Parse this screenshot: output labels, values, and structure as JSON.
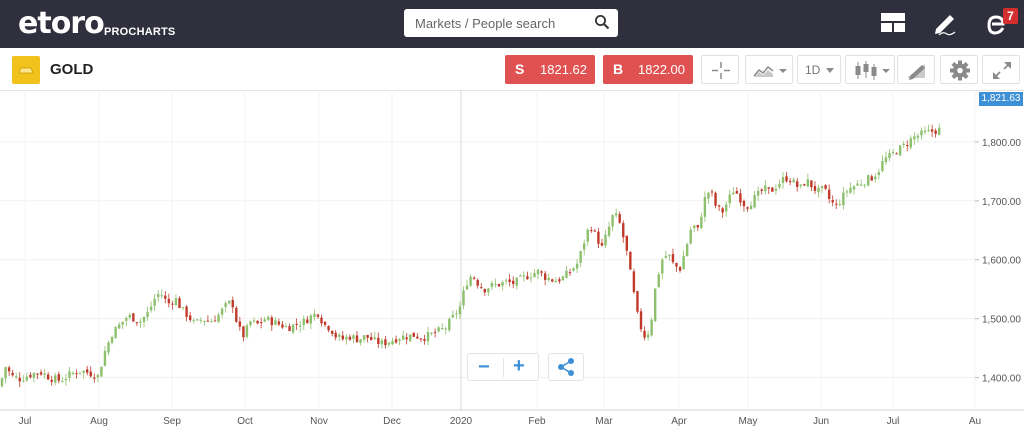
{
  "header": {
    "logo_text": "etoro",
    "logo_sub": "PROCHARTS",
    "search": {
      "placeholder": "Markets / People search"
    },
    "notifications_count": "7",
    "icons": [
      "layout-icon",
      "pencil-icon",
      "etoro-e-icon",
      "search-icon"
    ]
  },
  "toolbar": {
    "instrument": "GOLD",
    "sell": {
      "letter": "S",
      "price": "1821.62"
    },
    "buy": {
      "letter": "B",
      "price": "1822.00"
    },
    "timeframe": "1D",
    "icons": [
      "crosshair-icon",
      "chart-type-icon",
      "candles-icon",
      "draw-icon",
      "gear-icon",
      "expand-icon"
    ]
  },
  "colors": {
    "topbar": "#2f2f3d",
    "sell": "#e05252",
    "buy": "#e05252",
    "up_candle": "#8cc06c",
    "down_candle": "#c0392b",
    "price_tag": "#3d8fd6"
  },
  "chart_data": {
    "type": "candlestick",
    "instrument": "GOLD",
    "x_labels": [
      "Jul",
      "Aug",
      "Sep",
      "Oct",
      "Nov",
      "Dec",
      "2020",
      "Feb",
      "Mar",
      "Apr",
      "May",
      "Jun",
      "Jul",
      "Au"
    ],
    "y_ticks": [
      "1,400.00",
      "1,500.00",
      "1,600.00",
      "1,700.00",
      "1,800.00"
    ],
    "ylim": [
      1345,
      1888
    ],
    "last_price": "1,821.63",
    "points": [
      [
        0,
        1385
      ],
      [
        5,
        1420
      ],
      [
        12,
        1402
      ],
      [
        20,
        1398
      ],
      [
        30,
        1405
      ],
      [
        40,
        1410
      ],
      [
        50,
        1400
      ],
      [
        60,
        1395
      ],
      [
        70,
        1405
      ],
      [
        80,
        1412
      ],
      [
        90,
        1408
      ],
      [
        98,
        1402
      ],
      [
        105,
        1445
      ],
      [
        112,
        1475
      ],
      [
        120,
        1490
      ],
      [
        128,
        1505
      ],
      [
        135,
        1500
      ],
      [
        140,
        1495
      ],
      [
        148,
        1510
      ],
      [
        155,
        1535
      ],
      [
        160,
        1545
      ],
      [
        168,
        1525
      ],
      [
        175,
        1535
      ],
      [
        182,
        1515
      ],
      [
        188,
        1505
      ],
      [
        195,
        1490
      ],
      [
        202,
        1500
      ],
      [
        210,
        1495
      ],
      [
        218,
        1505
      ],
      [
        225,
        1520
      ],
      [
        232,
        1530
      ],
      [
        238,
        1485
      ],
      [
        244,
        1470
      ],
      [
        250,
        1495
      ],
      [
        258,
        1490
      ],
      [
        265,
        1500
      ],
      [
        272,
        1495
      ],
      [
        280,
        1490
      ],
      [
        288,
        1485
      ],
      [
        296,
        1490
      ],
      [
        304,
        1495
      ],
      [
        312,
        1505
      ],
      [
        318,
        1510
      ],
      [
        324,
        1490
      ],
      [
        330,
        1485
      ],
      [
        336,
        1470
      ],
      [
        342,
        1465
      ],
      [
        350,
        1470
      ],
      [
        358,
        1465
      ],
      [
        366,
        1470
      ],
      [
        374,
        1462
      ],
      [
        382,
        1458
      ],
      [
        390,
        1462
      ],
      [
        398,
        1468
      ],
      [
        406,
        1470
      ],
      [
        414,
        1472
      ],
      [
        422,
        1468
      ],
      [
        430,
        1472
      ],
      [
        438,
        1478
      ],
      [
        446,
        1485
      ],
      [
        452,
        1500
      ],
      [
        460,
        1520
      ],
      [
        466,
        1560
      ],
      [
        472,
        1575
      ],
      [
        478,
        1560
      ],
      [
        484,
        1550
      ],
      [
        490,
        1555
      ],
      [
        498,
        1558
      ],
      [
        506,
        1562
      ],
      [
        514,
        1560
      ],
      [
        522,
        1568
      ],
      [
        530,
        1575
      ],
      [
        538,
        1580
      ],
      [
        546,
        1570
      ],
      [
        554,
        1565
      ],
      [
        562,
        1568
      ],
      [
        570,
        1580
      ],
      [
        578,
        1595
      ],
      [
        584,
        1630
      ],
      [
        590,
        1660
      ],
      [
        596,
        1640
      ],
      [
        602,
        1620
      ],
      [
        608,
        1650
      ],
      [
        614,
        1680
      ],
      [
        620,
        1660
      ],
      [
        626,
        1620
      ],
      [
        632,
        1560
      ],
      [
        638,
        1500
      ],
      [
        644,
        1470
      ],
      [
        650,
        1480
      ],
      [
        656,
        1560
      ],
      [
        662,
        1600
      ],
      [
        668,
        1610
      ],
      [
        674,
        1590
      ],
      [
        680,
        1585
      ],
      [
        686,
        1620
      ],
      [
        692,
        1660
      ],
      [
        698,
        1650
      ],
      [
        704,
        1700
      ],
      [
        710,
        1720
      ],
      [
        716,
        1690
      ],
      [
        722,
        1680
      ],
      [
        728,
        1700
      ],
      [
        734,
        1720
      ],
      [
        740,
        1705
      ],
      [
        746,
        1690
      ],
      [
        752,
        1700
      ],
      [
        758,
        1710
      ],
      [
        764,
        1720
      ],
      [
        770,
        1715
      ],
      [
        776,
        1725
      ],
      [
        782,
        1735
      ],
      [
        788,
        1740
      ],
      [
        794,
        1730
      ],
      [
        800,
        1720
      ],
      [
        806,
        1735
      ],
      [
        812,
        1725
      ],
      [
        818,
        1715
      ],
      [
        824,
        1720
      ],
      [
        830,
        1700
      ],
      [
        836,
        1690
      ],
      [
        842,
        1705
      ],
      [
        848,
        1720
      ],
      [
        854,
        1725
      ],
      [
        860,
        1730
      ],
      [
        866,
        1735
      ],
      [
        872,
        1740
      ],
      [
        878,
        1750
      ],
      [
        884,
        1770
      ],
      [
        890,
        1775
      ],
      [
        896,
        1785
      ],
      [
        902,
        1790
      ],
      [
        908,
        1800
      ],
      [
        914,
        1808
      ],
      [
        920,
        1812
      ],
      [
        926,
        1815
      ],
      [
        932,
        1818
      ],
      [
        938,
        1820
      ],
      [
        942,
        1822
      ]
    ]
  },
  "controls": {
    "zoom_out": "−",
    "zoom_in": "+",
    "share": "share-icon"
  }
}
